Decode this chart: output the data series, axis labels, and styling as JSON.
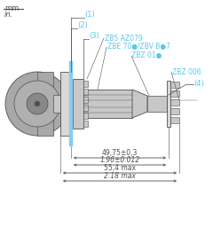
{
  "bg_color": "#ffffff",
  "cyan_color": "#5bc8e8",
  "dark_gray": "#505050",
  "mid_gray": "#a8a8a8",
  "light_gray": "#c8c8c8",
  "panel_color": "#d8d8d8",
  "board_color": "#88ccee",
  "unit_label_mm": "mm",
  "unit_label_in": "in.",
  "label1": "(1)",
  "label2": "(2)",
  "label3": "(3)",
  "label4": "(4)",
  "ref1": "ZB5 AZ079",
  "ref2": "ZBE 70●/ZBV B●7",
  "ref3": "ZBZ 01●",
  "ref4": "ZBZ 006",
  "dim1_text": "49,75±0,3",
  "dim2_text": "1.96±0.012",
  "dim3_text": "55,4 max",
  "dim4_text": "2.18 max"
}
